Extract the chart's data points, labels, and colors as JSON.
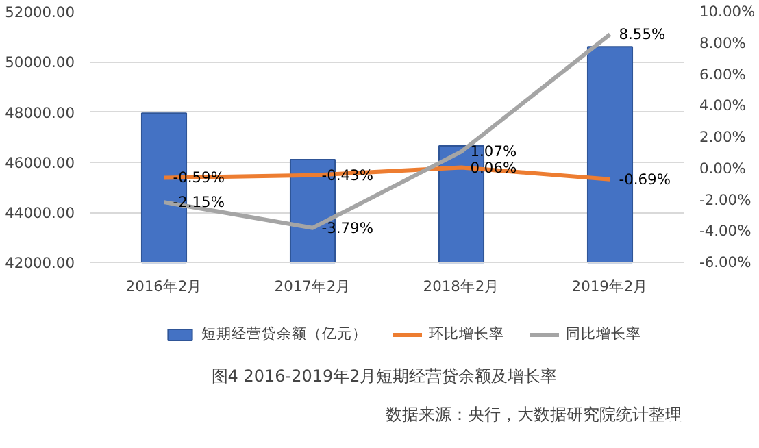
{
  "chart_data": {
    "type": "bar",
    "title": "图4 2016-2019年2月短期经营贷余额及增长率",
    "annotations": [
      "数据来源：央行，大数据研究院统计整理"
    ],
    "categories": [
      "2016年2月",
      "2017年2月",
      "2018年2月",
      "2019年2月"
    ],
    "series": [
      {
        "name": "短期经营贷余额（亿元）",
        "color": "#4472c4",
        "values": [
          47950,
          46100,
          46650,
          50600
        ]
      },
      {
        "name": "环比增长率",
        "type": "line",
        "axis": "y2",
        "color": "#ed7d31",
        "values": [
          -0.59,
          -0.43,
          0.06,
          -0.69
        ],
        "value_labels": [
          "-0.59%",
          "-0.43%",
          "0.06%",
          "-0.69%"
        ]
      },
      {
        "name": "同比增长率",
        "type": "line",
        "axis": "y2",
        "color": "#a5a5a5",
        "values": [
          -2.15,
          -3.79,
          1.07,
          8.55
        ],
        "value_labels": [
          "-2.15%",
          "-3.79%",
          "1.07%",
          "8.55%"
        ]
      }
    ],
    "ylim": [
      42000,
      52000
    ],
    "yticks": [
      {
        "value": 42000,
        "label": "42000.00"
      },
      {
        "value": 44000,
        "label": "44000.00"
      },
      {
        "value": 46000,
        "label": "46000.00"
      },
      {
        "value": 48000,
        "label": "48000.00"
      },
      {
        "value": 50000,
        "label": "50000.00"
      },
      {
        "value": 52000,
        "label": "52000.00"
      }
    ],
    "y2lim": [
      -6,
      10
    ],
    "y2ticks": [
      {
        "value": -6,
        "label": "-6.00%"
      },
      {
        "value": -4,
        "label": "-4.00%"
      },
      {
        "value": -2,
        "label": "-2.00%"
      },
      {
        "value": 0,
        "label": "0.00%"
      },
      {
        "value": 2,
        "label": "2.00%"
      },
      {
        "value": 4,
        "label": "4.00%"
      },
      {
        "value": 6,
        "label": "6.00%"
      },
      {
        "value": 8,
        "label": "8.00%"
      },
      {
        "value": 10,
        "label": "10.00%"
      }
    ],
    "grid": "y",
    "legend": "bottom"
  }
}
